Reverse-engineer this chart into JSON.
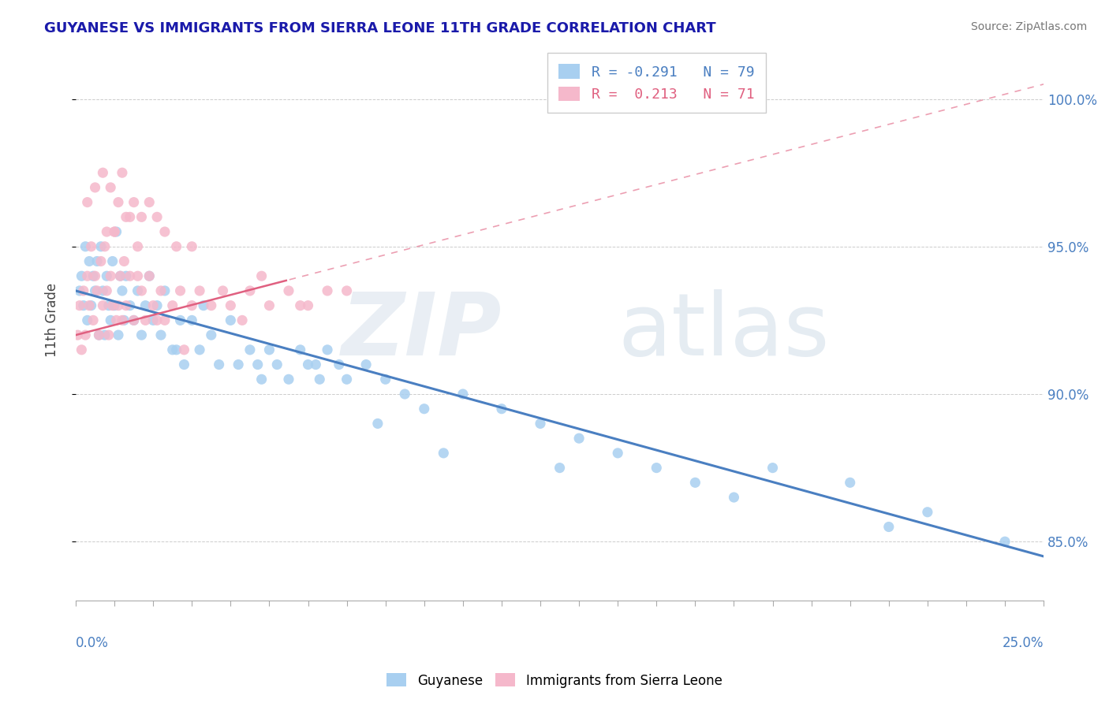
{
  "title": "GUYANESE VS IMMIGRANTS FROM SIERRA LEONE 11TH GRADE CORRELATION CHART",
  "source": "Source: ZipAtlas.com",
  "ylabel": "11th Grade",
  "legend_blue": "R = -0.291   N = 79",
  "legend_pink": "R =  0.213   N = 71",
  "blue_color": "#a8cff0",
  "pink_color": "#f5b8cb",
  "blue_line_color": "#4a7fc1",
  "pink_line_color": "#e06080",
  "xlim": [
    0.0,
    25.0
  ],
  "ylim": [
    83.0,
    102.0
  ],
  "yticks": [
    85.0,
    90.0,
    95.0,
    100.0
  ],
  "ytick_labels": [
    "85.0%",
    "90.0%",
    "95.0%",
    "100.0%"
  ],
  "blue_scatter_x": [
    0.1,
    0.15,
    0.2,
    0.25,
    0.3,
    0.35,
    0.4,
    0.45,
    0.5,
    0.55,
    0.6,
    0.65,
    0.7,
    0.75,
    0.8,
    0.85,
    0.9,
    0.95,
    1.0,
    1.05,
    1.1,
    1.15,
    1.2,
    1.25,
    1.3,
    1.4,
    1.5,
    1.6,
    1.7,
    1.8,
    1.9,
    2.0,
    2.1,
    2.2,
    2.3,
    2.5,
    2.7,
    2.8,
    3.0,
    3.2,
    3.5,
    3.7,
    4.0,
    4.2,
    4.5,
    4.7,
    5.0,
    5.2,
    5.5,
    5.8,
    6.0,
    6.3,
    6.5,
    6.8,
    7.0,
    7.5,
    8.0,
    8.5,
    9.0,
    10.0,
    11.0,
    12.0,
    13.0,
    14.0,
    15.0,
    16.0,
    17.0,
    18.0,
    20.0,
    22.0,
    3.3,
    2.6,
    4.8,
    6.2,
    7.8,
    9.5,
    12.5,
    21.0,
    24.0
  ],
  "blue_scatter_y": [
    93.5,
    94.0,
    93.0,
    95.0,
    92.5,
    94.5,
    93.0,
    94.0,
    93.5,
    94.5,
    92.0,
    95.0,
    93.5,
    92.0,
    94.0,
    93.0,
    92.5,
    94.5,
    93.0,
    95.5,
    92.0,
    94.0,
    93.5,
    92.5,
    94.0,
    93.0,
    92.5,
    93.5,
    92.0,
    93.0,
    94.0,
    92.5,
    93.0,
    92.0,
    93.5,
    91.5,
    92.5,
    91.0,
    92.5,
    91.5,
    92.0,
    91.0,
    92.5,
    91.0,
    91.5,
    91.0,
    91.5,
    91.0,
    90.5,
    91.5,
    91.0,
    90.5,
    91.5,
    91.0,
    90.5,
    91.0,
    90.5,
    90.0,
    89.5,
    90.0,
    89.5,
    89.0,
    88.5,
    88.0,
    87.5,
    87.0,
    86.5,
    87.5,
    87.0,
    86.0,
    93.0,
    91.5,
    90.5,
    91.0,
    89.0,
    88.0,
    87.5,
    85.5,
    85.0
  ],
  "pink_scatter_x": [
    0.05,
    0.1,
    0.15,
    0.2,
    0.25,
    0.3,
    0.35,
    0.4,
    0.45,
    0.5,
    0.55,
    0.6,
    0.65,
    0.7,
    0.75,
    0.8,
    0.85,
    0.9,
    0.95,
    1.0,
    1.05,
    1.1,
    1.15,
    1.2,
    1.25,
    1.3,
    1.4,
    1.5,
    1.6,
    1.7,
    1.8,
    1.9,
    2.0,
    2.1,
    2.2,
    2.3,
    2.5,
    2.7,
    3.0,
    3.2,
    3.5,
    3.8,
    4.0,
    4.3,
    4.5,
    5.0,
    5.5,
    6.0,
    6.5,
    7.0,
    0.3,
    0.5,
    0.7,
    0.9,
    1.1,
    1.3,
    1.5,
    1.7,
    1.9,
    2.1,
    2.3,
    2.6,
    1.0,
    3.0,
    1.2,
    0.8,
    1.4,
    5.8,
    4.8,
    2.8,
    1.6
  ],
  "pink_scatter_y": [
    92.0,
    93.0,
    91.5,
    93.5,
    92.0,
    94.0,
    93.0,
    95.0,
    92.5,
    94.0,
    93.5,
    92.0,
    94.5,
    93.0,
    95.0,
    93.5,
    92.0,
    94.0,
    93.0,
    95.5,
    92.5,
    93.0,
    94.0,
    92.5,
    94.5,
    93.0,
    94.0,
    92.5,
    94.0,
    93.5,
    92.5,
    94.0,
    93.0,
    92.5,
    93.5,
    92.5,
    93.0,
    93.5,
    93.0,
    93.5,
    93.0,
    93.5,
    93.0,
    92.5,
    93.5,
    93.0,
    93.5,
    93.0,
    93.5,
    93.5,
    96.5,
    97.0,
    97.5,
    97.0,
    96.5,
    96.0,
    96.5,
    96.0,
    96.5,
    96.0,
    95.5,
    95.0,
    95.5,
    95.0,
    97.5,
    95.5,
    96.0,
    93.0,
    94.0,
    91.5,
    95.0
  ]
}
